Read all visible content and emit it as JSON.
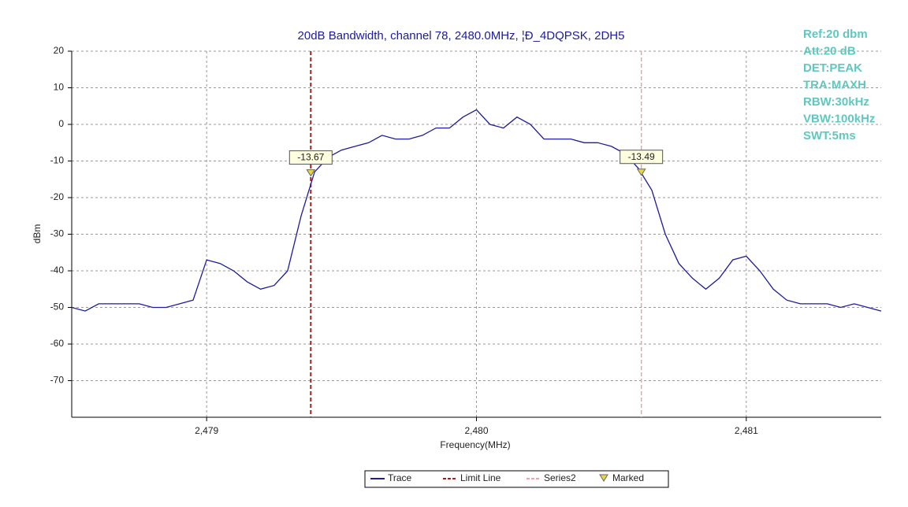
{
  "chart_data": {
    "type": "line",
    "title": "20dB Bandwidth, channel 78, 2480.0MHz, ¦Ð_4DQPSK, 2DH5",
    "x_label": "Frequency(MHz)",
    "y_label": "dBm",
    "xlim": [
      2478.5,
      2481.5
    ],
    "ylim": [
      -80,
      20
    ],
    "xticks": [
      {
        "value": 2479,
        "label": "2,479"
      },
      {
        "value": 2480,
        "label": "2,480"
      },
      {
        "value": 2481,
        "label": "2,481"
      }
    ],
    "yticks": [
      20,
      10,
      0,
      -10,
      -20,
      -30,
      -40,
      -50,
      -60,
      -70
    ],
    "grid": true,
    "x": [
      2478.5,
      2478.55,
      2478.6,
      2478.65,
      2478.7,
      2478.75,
      2478.8,
      2478.85,
      2478.9,
      2478.95,
      2479.0,
      2479.05,
      2479.1,
      2479.15,
      2479.2,
      2479.25,
      2479.3,
      2479.35,
      2479.4,
      2479.45,
      2479.5,
      2479.55,
      2479.6,
      2479.65,
      2479.7,
      2479.75,
      2479.8,
      2479.85,
      2479.9,
      2479.95,
      2480.0,
      2480.05,
      2480.1,
      2480.15,
      2480.2,
      2480.25,
      2480.3,
      2480.35,
      2480.4,
      2480.45,
      2480.5,
      2480.55,
      2480.6,
      2480.65,
      2480.7,
      2480.75,
      2480.8,
      2480.85,
      2480.9,
      2480.95,
      2481.0,
      2481.05,
      2481.1,
      2481.15,
      2481.2,
      2481.25,
      2481.3,
      2481.35,
      2481.4,
      2481.45,
      2481.5
    ],
    "series": [
      {
        "name": "Trace",
        "color": "#1c1c9c",
        "values": [
          -50,
          -51,
          -49,
          -49,
          -49,
          -49,
          -50,
          -50,
          -49,
          -48,
          -37,
          -38,
          -40,
          -43,
          -45,
          -44,
          -40,
          -25,
          -13,
          -9,
          -7,
          -6,
          -5,
          -3,
          -4,
          -4,
          -3,
          -1,
          -1,
          2,
          4,
          0,
          -1,
          2,
          0,
          -4,
          -4,
          -4,
          -5,
          -5,
          -6,
          -8,
          -12,
          -18,
          -30,
          -38,
          -42,
          -45,
          -42,
          -37,
          -36,
          -40,
          -45,
          -48,
          -49,
          -49,
          -49,
          -50,
          -49,
          -50,
          -51
        ]
      },
      {
        "name": "Limit Line",
        "color": "#b01818",
        "x": 2479.386
      },
      {
        "name": "Series2",
        "color": "#f0a0a8",
        "x": 2480.611
      },
      {
        "name": "Marked",
        "color": "#e8d840",
        "x": [
          2479.386,
          2480.611
        ],
        "values": [
          -13.67,
          -13.49
        ]
      }
    ],
    "annotations": [
      "Ref:20 dbm",
      "Att:20 dB",
      "DET:PEAK",
      "TRA:MAXH",
      "RBW:30kHz",
      "VBW:100kHz",
      "SWT:5ms"
    ]
  }
}
